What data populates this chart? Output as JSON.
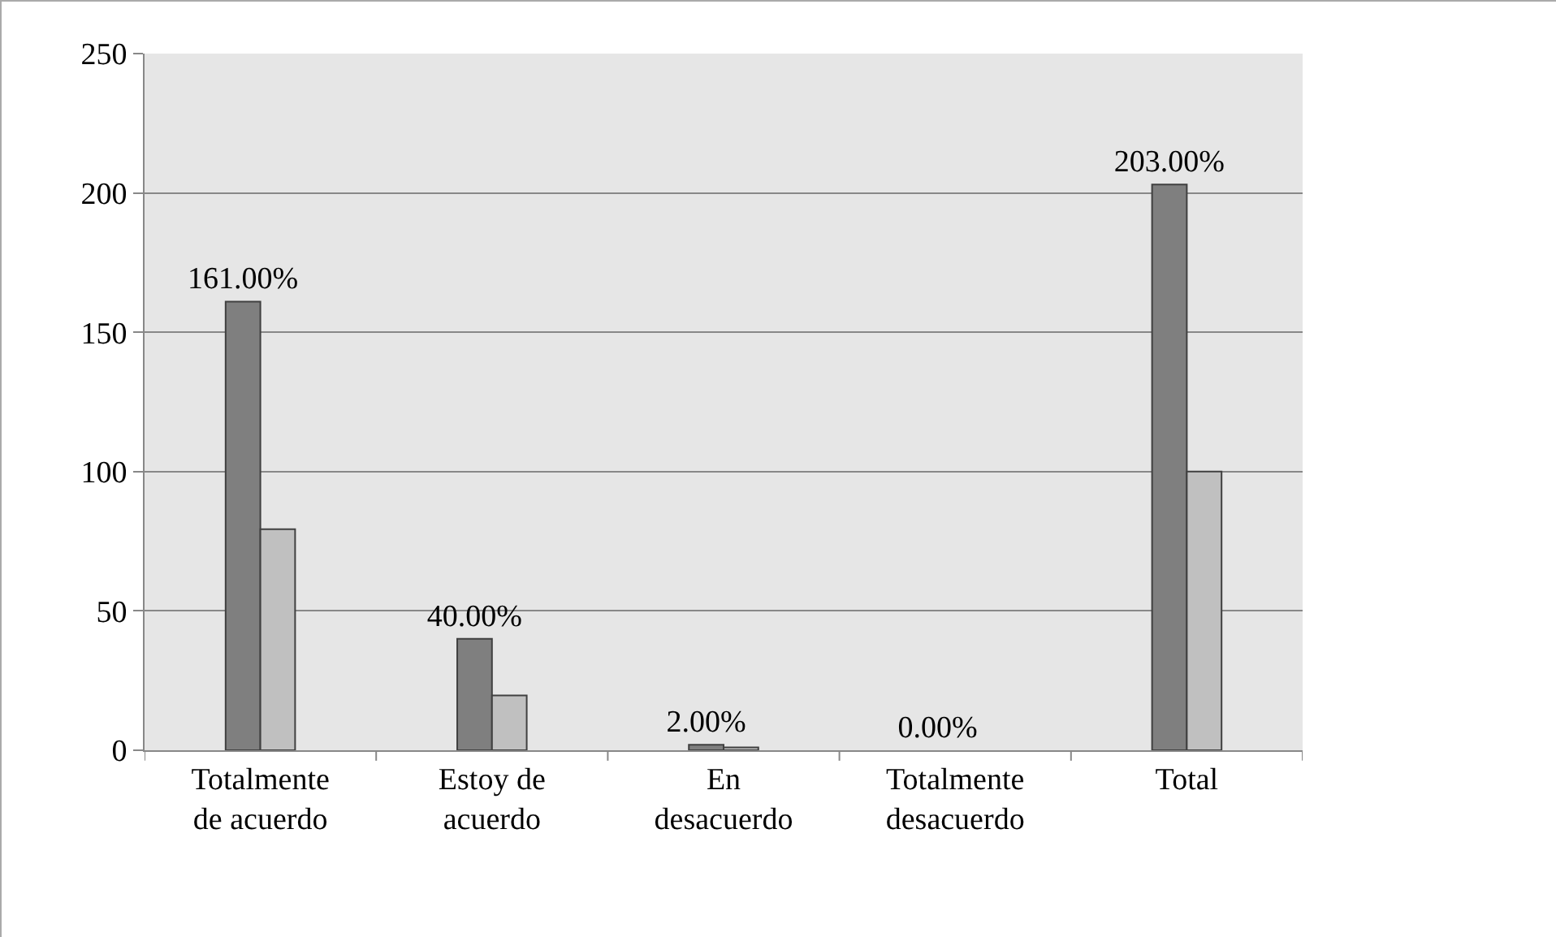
{
  "chart_data": {
    "type": "bar",
    "categories": [
      "Totalmente de acuerdo",
      "Estoy de acuerdo",
      "En desacuerdo",
      "Totalmente desacuerdo",
      "Total"
    ],
    "series": [
      {
        "color": "#7f7f7f",
        "values": [
          161,
          40,
          2,
          0,
          203
        ],
        "value_labels": [
          "161.00%",
          "40.00%",
          "2.00%",
          "0.00%",
          "203.00%"
        ]
      },
      {
        "color": "#c0c0c0",
        "values": [
          79.3,
          19.7,
          1,
          0,
          100
        ]
      }
    ],
    "ylim": [
      0,
      250
    ],
    "yticks": [
      0,
      50,
      100,
      150,
      200,
      250
    ],
    "grid": "y",
    "legend": false
  }
}
